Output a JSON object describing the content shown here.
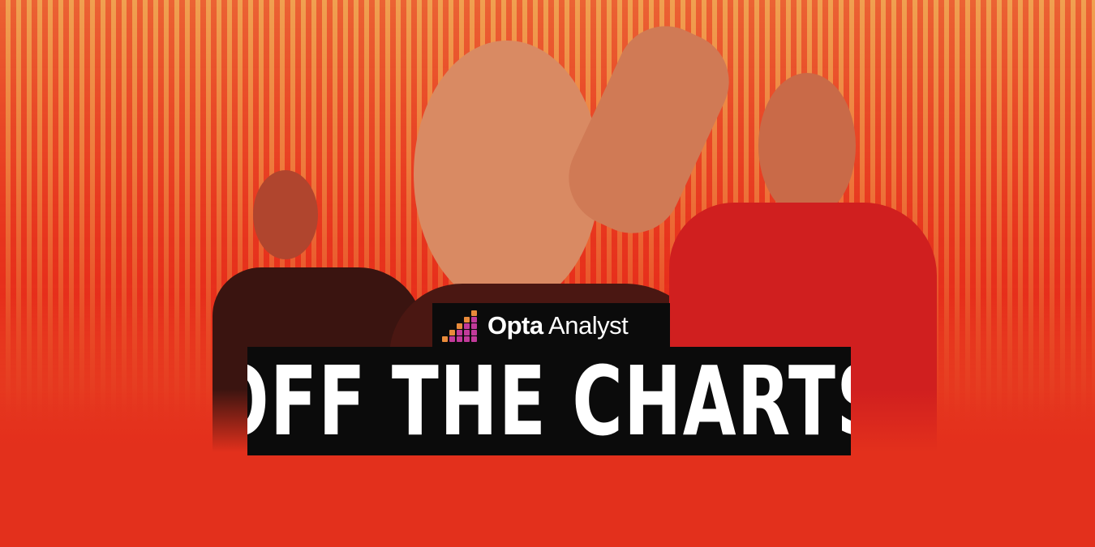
{
  "brand": {
    "name_bold": "Opta",
    "name_light": "Analyst"
  },
  "headline": "OFF THE CHARTS",
  "colors": {
    "background_red": "#e8361f",
    "background_orange": "#f0a050",
    "box_black": "#0b0b0b",
    "text_white": "#ffffff",
    "logo_orange": "#e98b3a",
    "logo_magenta": "#c23a9a"
  },
  "icons": [
    "opta-analyst-logo-icon"
  ]
}
